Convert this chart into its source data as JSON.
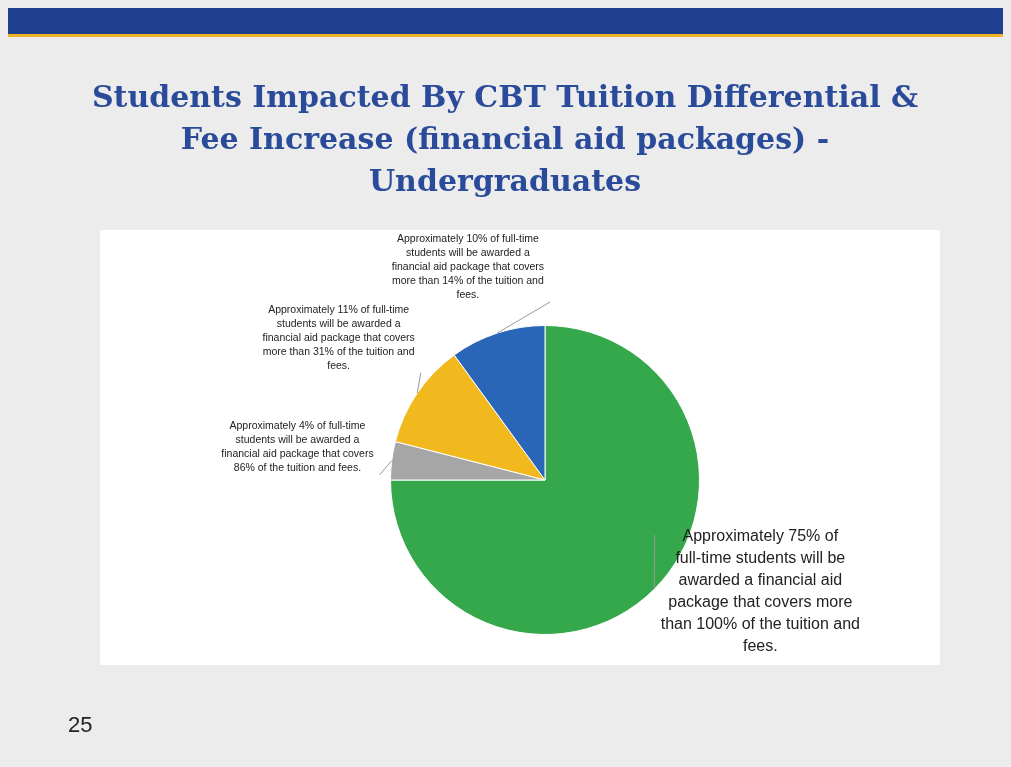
{
  "chart_data": {
    "type": "pie",
    "title": "Students Impacted By CBT Tuition Differential & Fee Increase (financial aid packages) - Undergraduates",
    "categories": [
      "Approximately 75% of full-time students will be awarded a financial aid package that covers more than 100% of the tuition and fees.",
      "Approximately 4% of full-time students will be awarded a financial aid package that covers 86% of the tuition and fees.",
      "Approximately 11% of full-time students will be awarded a financial aid package that covers more than 31% of the tuition and fees.",
      "Approximately 10% of full-time students will be awarded a financial aid package that covers more than 14% of the tuition and fees."
    ],
    "values": [
      75,
      4,
      11,
      10
    ],
    "colors": [
      "#34a84a",
      "#a6a6a6",
      "#f2b91e",
      "#2a66b8"
    ],
    "annotations": [
      "25"
    ]
  }
}
